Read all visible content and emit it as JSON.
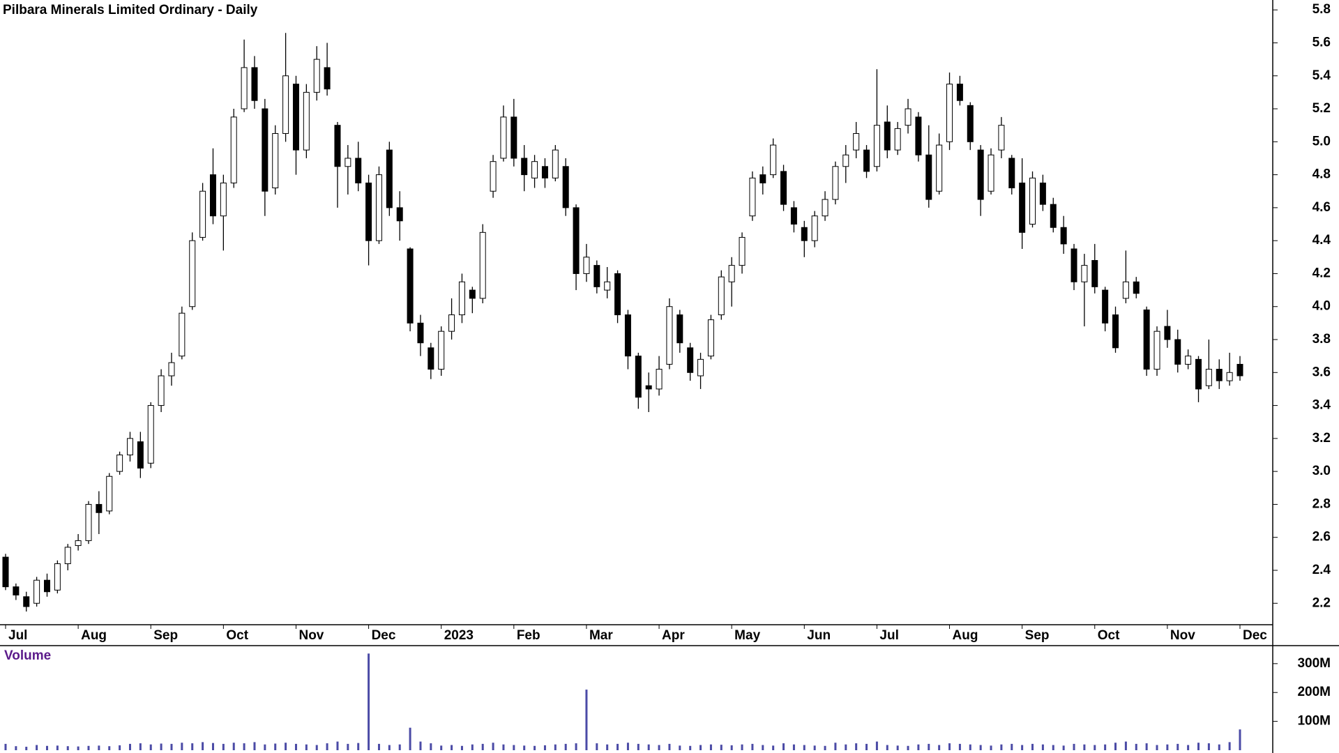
{
  "chart_data": {
    "type": "candlestick",
    "title": "Pilbara Minerals Limited Ordinary - Daily",
    "volume_title": "Volume",
    "categories": [
      "Jul",
      null,
      null,
      null,
      null,
      null,
      null,
      "Aug",
      null,
      null,
      null,
      null,
      null,
      null,
      "Sep",
      null,
      null,
      null,
      null,
      null,
      null,
      "Oct",
      null,
      null,
      null,
      null,
      null,
      null,
      "Nov",
      null,
      null,
      null,
      null,
      null,
      null,
      "Dec",
      null,
      null,
      null,
      null,
      null,
      null,
      "2023",
      null,
      null,
      null,
      null,
      null,
      null,
      "Feb",
      null,
      null,
      null,
      null,
      null,
      null,
      "Mar",
      null,
      null,
      null,
      null,
      null,
      null,
      "Apr",
      null,
      null,
      null,
      null,
      null,
      null,
      "May",
      null,
      null,
      null,
      null,
      null,
      null,
      "Jun",
      null,
      null,
      null,
      null,
      null,
      null,
      "Jul",
      null,
      null,
      null,
      null,
      null,
      null,
      "Aug",
      null,
      null,
      null,
      null,
      null,
      null,
      "Sep",
      null,
      null,
      null,
      null,
      null,
      null,
      "Oct",
      null,
      null,
      null,
      null,
      null,
      null,
      "Nov",
      null,
      null,
      null,
      null,
      null,
      null,
      "Dec"
    ],
    "ohlc": [
      [
        2.48,
        2.5,
        2.28,
        2.3
      ],
      [
        2.3,
        2.32,
        2.22,
        2.25
      ],
      [
        2.24,
        2.27,
        2.15,
        2.18
      ],
      [
        2.2,
        2.36,
        2.18,
        2.34
      ],
      [
        2.34,
        2.38,
        2.24,
        2.27
      ],
      [
        2.28,
        2.46,
        2.26,
        2.44
      ],
      [
        2.44,
        2.56,
        2.4,
        2.54
      ],
      [
        2.55,
        2.62,
        2.52,
        2.58
      ],
      [
        2.58,
        2.82,
        2.56,
        2.8
      ],
      [
        2.8,
        2.88,
        2.62,
        2.75
      ],
      [
        2.76,
        2.99,
        2.74,
        2.97
      ],
      [
        3.0,
        3.12,
        2.98,
        3.1
      ],
      [
        3.1,
        3.24,
        3.06,
        3.2
      ],
      [
        3.18,
        3.24,
        2.96,
        3.02
      ],
      [
        3.05,
        3.42,
        3.02,
        3.4
      ],
      [
        3.4,
        3.62,
        3.36,
        3.58
      ],
      [
        3.58,
        3.72,
        3.52,
        3.66
      ],
      [
        3.7,
        4.0,
        3.68,
        3.96
      ],
      [
        4.0,
        4.45,
        3.98,
        4.4
      ],
      [
        4.42,
        4.75,
        4.4,
        4.7
      ],
      [
        4.8,
        4.96,
        4.5,
        4.55
      ],
      [
        4.55,
        4.8,
        4.34,
        4.75
      ],
      [
        4.75,
        5.2,
        4.72,
        5.15
      ],
      [
        5.2,
        5.62,
        5.18,
        5.45
      ],
      [
        5.45,
        5.52,
        5.2,
        5.25
      ],
      [
        5.2,
        5.26,
        4.55,
        4.7
      ],
      [
        4.72,
        5.1,
        4.68,
        5.05
      ],
      [
        5.05,
        5.66,
        5.0,
        5.4
      ],
      [
        5.35,
        5.4,
        4.8,
        4.95
      ],
      [
        4.95,
        5.35,
        4.9,
        5.3
      ],
      [
        5.3,
        5.58,
        5.25,
        5.5
      ],
      [
        5.45,
        5.6,
        5.28,
        5.32
      ],
      [
        5.1,
        5.12,
        4.6,
        4.85
      ],
      [
        4.85,
        4.98,
        4.68,
        4.9
      ],
      [
        4.9,
        5.0,
        4.7,
        4.75
      ],
      [
        4.75,
        4.8,
        4.25,
        4.4
      ],
      [
        4.4,
        4.85,
        4.38,
        4.8
      ],
      [
        4.95,
        5.0,
        4.55,
        4.6
      ],
      [
        4.6,
        4.7,
        4.4,
        4.52
      ],
      [
        4.35,
        4.36,
        3.85,
        3.9
      ],
      [
        3.9,
        3.95,
        3.7,
        3.78
      ],
      [
        3.75,
        3.78,
        3.56,
        3.62
      ],
      [
        3.62,
        3.88,
        3.58,
        3.85
      ],
      [
        3.85,
        4.05,
        3.8,
        3.95
      ],
      [
        3.95,
        4.2,
        3.9,
        4.15
      ],
      [
        4.1,
        4.12,
        3.96,
        4.05
      ],
      [
        4.05,
        4.5,
        4.02,
        4.45
      ],
      [
        4.7,
        4.92,
        4.66,
        4.88
      ],
      [
        4.9,
        5.22,
        4.88,
        5.15
      ],
      [
        5.15,
        5.26,
        4.85,
        4.9
      ],
      [
        4.9,
        4.98,
        4.7,
        4.8
      ],
      [
        4.78,
        4.92,
        4.72,
        4.88
      ],
      [
        4.85,
        4.9,
        4.72,
        4.78
      ],
      [
        4.78,
        4.98,
        4.76,
        4.95
      ],
      [
        4.85,
        4.9,
        4.55,
        4.6
      ],
      [
        4.6,
        4.62,
        4.1,
        4.2
      ],
      [
        4.2,
        4.38,
        4.15,
        4.3
      ],
      [
        4.25,
        4.28,
        4.08,
        4.12
      ],
      [
        4.1,
        4.24,
        4.05,
        4.15
      ],
      [
        4.2,
        4.22,
        3.9,
        3.95
      ],
      [
        3.95,
        3.98,
        3.62,
        3.7
      ],
      [
        3.7,
        3.72,
        3.38,
        3.45
      ],
      [
        3.52,
        3.6,
        3.36,
        3.5
      ],
      [
        3.5,
        3.7,
        3.46,
        3.62
      ],
      [
        3.65,
        4.05,
        3.62,
        4.0
      ],
      [
        3.95,
        3.98,
        3.72,
        3.78
      ],
      [
        3.75,
        3.78,
        3.55,
        3.6
      ],
      [
        3.58,
        3.72,
        3.5,
        3.68
      ],
      [
        3.7,
        3.95,
        3.68,
        3.92
      ],
      [
        3.95,
        4.22,
        3.92,
        4.18
      ],
      [
        4.15,
        4.3,
        4.0,
        4.25
      ],
      [
        4.25,
        4.45,
        4.2,
        4.42
      ],
      [
        4.55,
        4.82,
        4.52,
        4.78
      ],
      [
        4.8,
        4.85,
        4.68,
        4.75
      ],
      [
        4.8,
        5.02,
        4.78,
        4.98
      ],
      [
        4.82,
        4.86,
        4.58,
        4.62
      ],
      [
        4.6,
        4.64,
        4.45,
        4.5
      ],
      [
        4.48,
        4.52,
        4.3,
        4.4
      ],
      [
        4.4,
        4.58,
        4.36,
        4.55
      ],
      [
        4.55,
        4.7,
        4.52,
        4.65
      ],
      [
        4.65,
        4.88,
        4.62,
        4.85
      ],
      [
        4.85,
        4.98,
        4.75,
        4.92
      ],
      [
        4.95,
        5.12,
        4.9,
        5.05
      ],
      [
        4.95,
        4.98,
        4.78,
        4.82
      ],
      [
        4.85,
        5.44,
        4.82,
        5.1
      ],
      [
        5.12,
        5.22,
        4.9,
        4.95
      ],
      [
        4.95,
        5.12,
        4.92,
        5.08
      ],
      [
        5.1,
        5.26,
        5.05,
        5.2
      ],
      [
        5.15,
        5.18,
        4.88,
        4.92
      ],
      [
        4.92,
        5.1,
        4.6,
        4.65
      ],
      [
        4.7,
        5.05,
        4.68,
        4.98
      ],
      [
        5.0,
        5.42,
        4.95,
        5.35
      ],
      [
        5.35,
        5.4,
        5.22,
        5.25
      ],
      [
        5.22,
        5.24,
        4.95,
        5.0
      ],
      [
        4.95,
        4.98,
        4.55,
        4.65
      ],
      [
        4.7,
        4.96,
        4.68,
        4.92
      ],
      [
        4.95,
        5.15,
        4.9,
        5.1
      ],
      [
        4.9,
        4.92,
        4.68,
        4.72
      ],
      [
        4.75,
        4.9,
        4.35,
        4.45
      ],
      [
        4.5,
        4.82,
        4.48,
        4.78
      ],
      [
        4.75,
        4.8,
        4.58,
        4.62
      ],
      [
        4.62,
        4.66,
        4.45,
        4.48
      ],
      [
        4.48,
        4.55,
        4.32,
        4.38
      ],
      [
        4.35,
        4.38,
        4.1,
        4.15
      ],
      [
        4.15,
        4.32,
        3.88,
        4.25
      ],
      [
        4.28,
        4.38,
        4.08,
        4.12
      ],
      [
        4.1,
        4.12,
        3.85,
        3.9
      ],
      [
        3.95,
        4.0,
        3.72,
        3.75
      ],
      [
        4.05,
        4.34,
        4.02,
        4.15
      ],
      [
        4.15,
        4.18,
        4.05,
        4.08
      ],
      [
        3.98,
        4.0,
        3.58,
        3.62
      ],
      [
        3.62,
        3.88,
        3.58,
        3.85
      ],
      [
        3.88,
        3.98,
        3.75,
        3.8
      ],
      [
        3.8,
        3.86,
        3.6,
        3.65
      ],
      [
        3.65,
        3.74,
        3.62,
        3.7
      ],
      [
        3.68,
        3.7,
        3.42,
        3.5
      ],
      [
        3.52,
        3.8,
        3.5,
        3.62
      ],
      [
        3.62,
        3.68,
        3.5,
        3.55
      ],
      [
        3.55,
        3.72,
        3.52,
        3.6
      ],
      [
        3.65,
        3.7,
        3.55,
        3.58
      ]
    ],
    "volume": [
      22,
      14,
      12,
      18,
      15,
      16,
      14,
      13,
      15,
      16,
      14,
      17,
      22,
      24,
      20,
      23,
      22,
      26,
      24,
      28,
      25,
      22,
      26,
      24,
      28,
      20,
      23,
      26,
      22,
      20,
      18,
      24,
      30,
      22,
      25,
      335,
      22,
      18,
      20,
      78,
      30,
      24,
      16,
      18,
      15,
      20,
      22,
      26,
      20,
      18,
      16,
      15,
      17,
      20,
      22,
      24,
      210,
      24,
      20,
      22,
      26,
      22,
      20,
      18,
      22,
      16,
      15,
      18,
      20,
      19,
      17,
      20,
      22,
      18,
      16,
      24,
      20,
      18,
      16,
      15,
      26,
      20,
      24,
      22,
      30,
      18,
      16,
      15,
      20,
      22,
      18,
      24,
      22,
      20,
      18,
      16,
      20,
      22,
      18,
      22,
      20,
      18,
      16,
      22,
      20,
      18,
      20,
      26,
      30,
      22,
      24,
      18,
      20,
      22,
      18,
      26,
      24,
      20,
      28,
      72
    ],
    "ylim": [
      2.07,
      5.86
    ],
    "yticks": [
      2.2,
      2.4,
      2.6,
      2.8,
      {
        "value": 3,
        "label": "3.0"
      },
      3.2,
      3.4,
      3.6,
      3.8,
      {
        "value": 4,
        "label": "4.0"
      },
      4.2,
      4.4,
      4.6,
      4.8,
      {
        "value": 5,
        "label": "5.0"
      },
      5.2,
      5.4,
      5.6,
      5.8
    ],
    "y2lim": [
      0,
      360
    ],
    "y2ticks": [
      {
        "value": 100,
        "label": "100M"
      },
      {
        "value": 200,
        "label": "200M"
      },
      {
        "value": 300,
        "label": "300M"
      }
    ],
    "up_color": "#ffffff",
    "down_color": "#000000",
    "volume_color": "#4b4ba6"
  }
}
